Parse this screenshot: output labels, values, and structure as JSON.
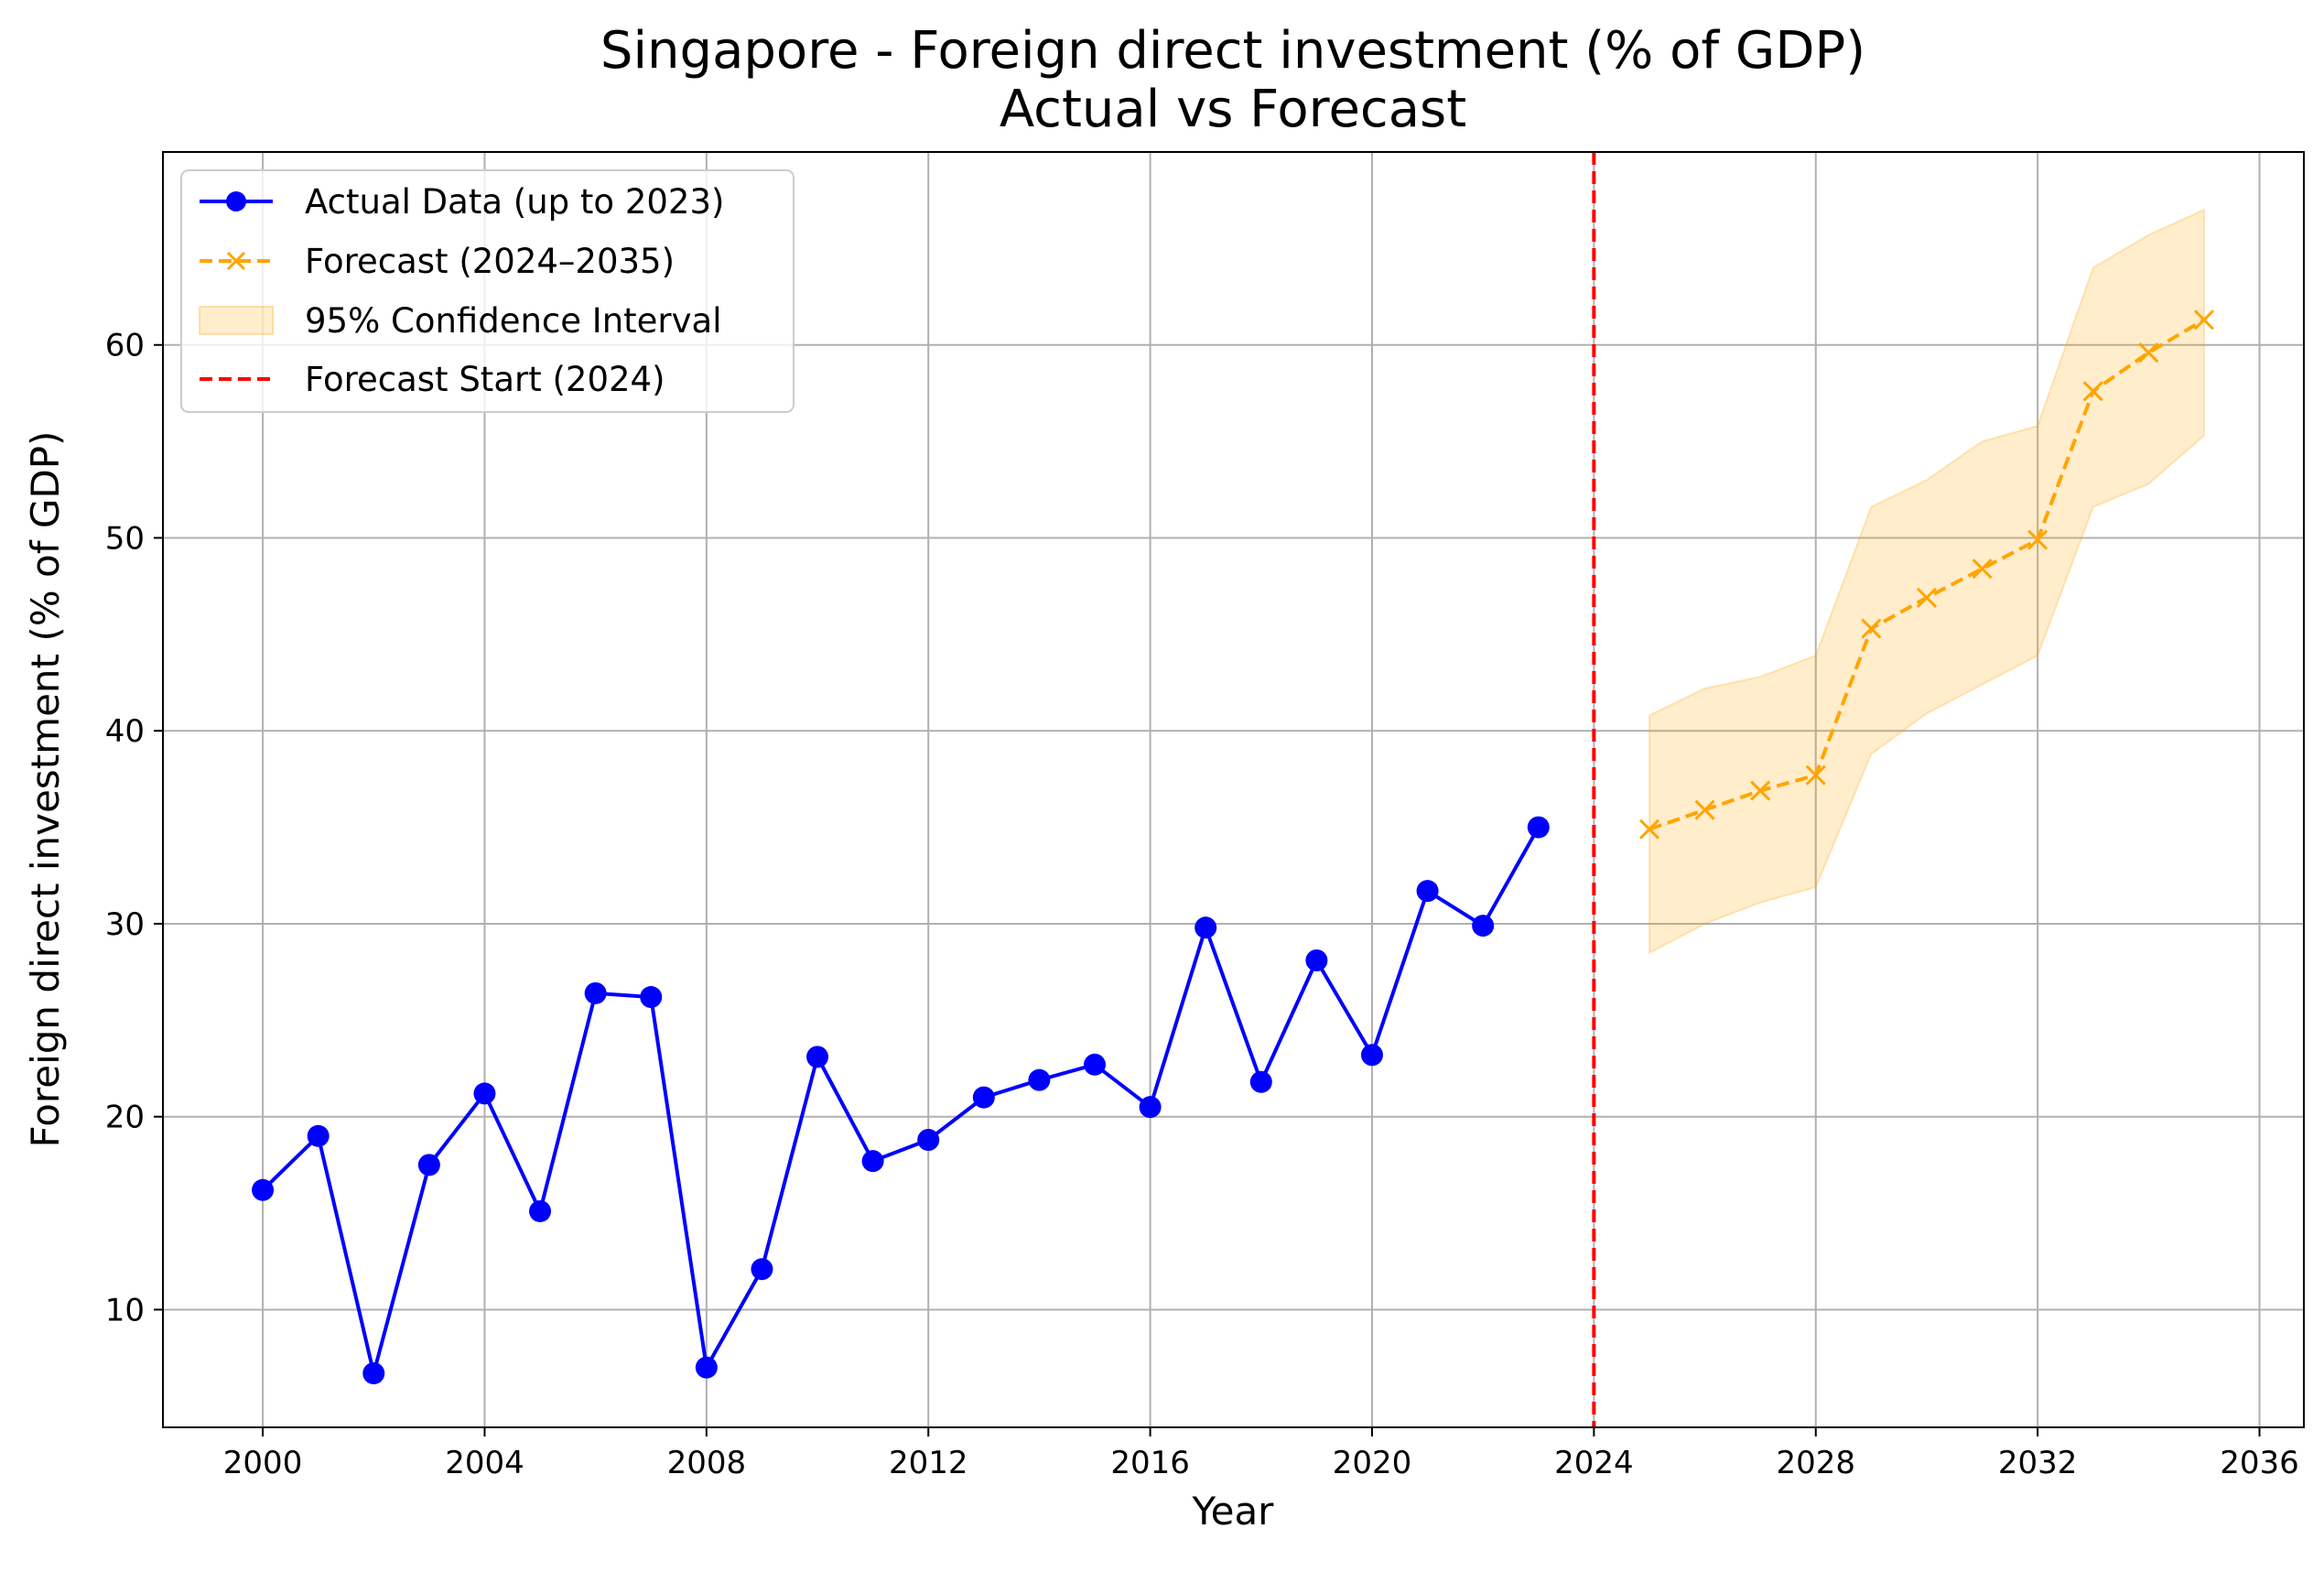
{
  "chart_data": {
    "type": "line",
    "title": "Singapore - Foreign direct investment (% of GDP)",
    "subtitle": "Actual vs Forecast",
    "xlabel": "Year",
    "ylabel": "Foreign direct investment (% of GDP)",
    "xlim": [
      1998.2,
      2036.8
    ],
    "ylim": [
      3.9,
      70.0
    ],
    "xticks": [
      2000,
      2004,
      2008,
      2012,
      2016,
      2020,
      2024,
      2028,
      2032,
      2036
    ],
    "yticks": [
      10,
      20,
      30,
      40,
      50,
      60
    ],
    "grid": true,
    "legend_position": "top-left",
    "forecast_start": 2024,
    "colors": {
      "actual": "#0000ff",
      "forecast": "#ffa500",
      "confidence": "#ffa500",
      "forecast_start": "#ff0000",
      "grid": "#b0b0b0"
    },
    "series": [
      {
        "name": "Actual Data (up to 2023)",
        "x": [
          2000,
          2001,
          2002,
          2003,
          2004,
          2005,
          2006,
          2007,
          2008,
          2009,
          2010,
          2011,
          2012,
          2013,
          2014,
          2015,
          2016,
          2017,
          2018,
          2019,
          2020,
          2021,
          2022,
          2023
        ],
        "y": [
          16.2,
          19.0,
          6.7,
          17.5,
          21.2,
          15.1,
          26.4,
          26.2,
          7.0,
          12.1,
          23.1,
          17.7,
          18.8,
          21.0,
          21.9,
          22.7,
          20.5,
          29.8,
          21.8,
          28.1,
          23.2,
          31.7,
          29.9,
          35.0
        ]
      },
      {
        "name": "Forecast (2024–2035)",
        "x": [
          2025,
          2026,
          2027,
          2028,
          2029,
          2030,
          2031,
          2032,
          2033,
          2034,
          2035
        ],
        "y": [
          34.9,
          35.9,
          36.9,
          37.7,
          45.3,
          46.9,
          48.4,
          49.9,
          57.6,
          59.6,
          61.3
        ]
      },
      {
        "name": "95% Confidence Interval",
        "x": [
          2025,
          2026,
          2027,
          2028,
          2029,
          2030,
          2031,
          2032,
          2033,
          2034,
          2035
        ],
        "lower": [
          28.5,
          30.0,
          31.1,
          31.9,
          38.8,
          40.9,
          42.4,
          43.9,
          51.6,
          52.8,
          55.3
        ],
        "upper": [
          40.8,
          42.2,
          42.8,
          43.9,
          51.6,
          53.0,
          55.0,
          55.8,
          64.0,
          65.7,
          67.0
        ]
      },
      {
        "name": "Forecast Start (2024)",
        "x": [
          2024
        ]
      }
    ]
  }
}
